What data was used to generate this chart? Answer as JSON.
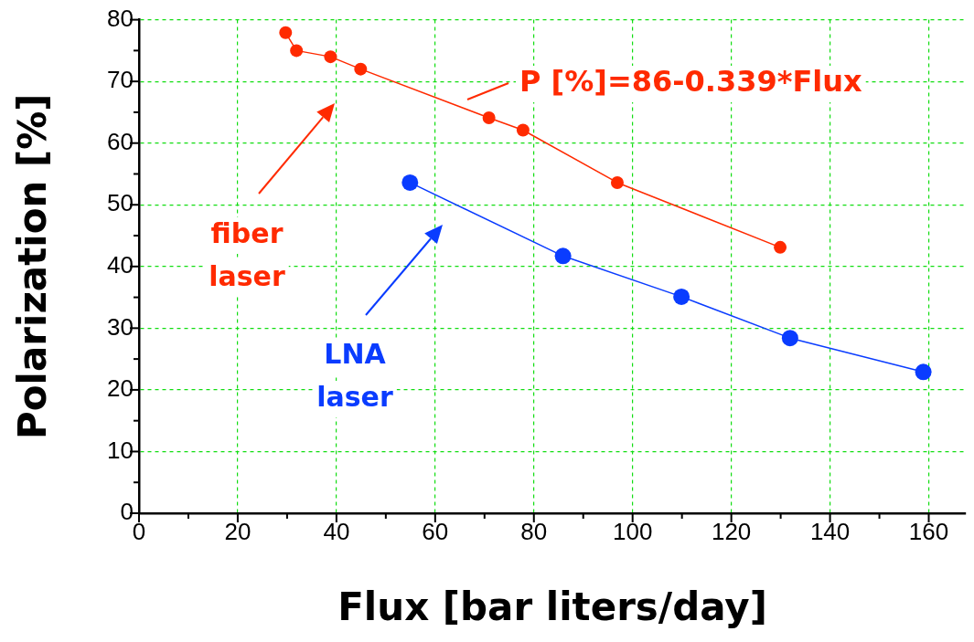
{
  "chart_data": {
    "type": "line",
    "xlabel": "Flux [bar liters/day]",
    "ylabel": "Polarization [%]",
    "annotations": [
      "P [%]=86-0.339*Flux"
    ],
    "series": [
      {
        "name": "fiber laser",
        "color": "#ff2a00",
        "x": [
          29.7,
          31.9,
          38.8,
          44.9,
          70.9,
          77.8,
          96.9,
          129.9
        ],
        "values": [
          77.9,
          75,
          74,
          72,
          64.1,
          62.1,
          53.6,
          43.1
        ]
      },
      {
        "name": "LNA laser",
        "color": "#0a3cff",
        "x": [
          54.9,
          85.9,
          109.9,
          131.9,
          158.9
        ],
        "values": [
          53.6,
          41.7,
          35.1,
          28.4,
          22.9
        ]
      }
    ],
    "xlim": [
      0,
      167.5
    ],
    "ylim": [
      0,
      80
    ],
    "xticks": [
      0,
      {
        "value": 10,
        "label": null
      },
      20,
      {
        "value": 30,
        "label": null
      },
      40,
      {
        "value": 50,
        "label": null
      },
      60,
      {
        "value": 70,
        "label": null
      },
      80,
      {
        "value": 90,
        "label": null
      },
      100,
      {
        "value": 110,
        "label": null
      },
      120,
      {
        "value": 130,
        "label": null
      },
      140,
      {
        "value": 150,
        "label": null
      },
      160
    ],
    "yticks": [
      0,
      {
        "value": 5,
        "label": null
      },
      10,
      {
        "value": 15,
        "label": null
      },
      20,
      {
        "value": 25,
        "label": null
      },
      30,
      {
        "value": 35,
        "label": null
      },
      40,
      {
        "value": 45,
        "label": null
      },
      50,
      {
        "value": 55,
        "label": null
      },
      60,
      {
        "value": 65,
        "label": null
      },
      70,
      {
        "value": 75,
        "label": null
      },
      80
    ],
    "grid": true,
    "legend": false,
    "marker": "circle",
    "line_style": "solid"
  }
}
